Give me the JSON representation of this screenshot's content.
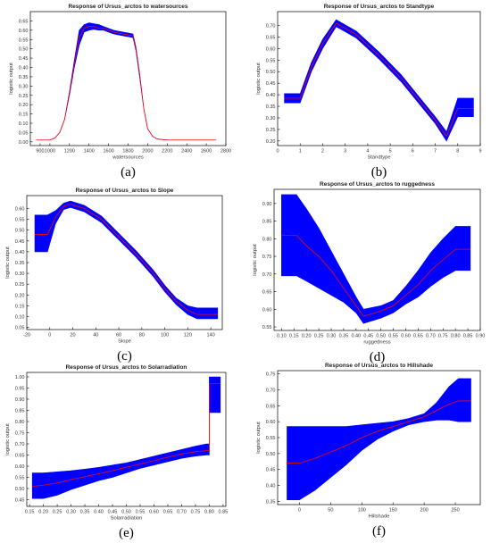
{
  "colors": {
    "band": "#0000ff",
    "mean": "#ff0000",
    "axis": "#000000"
  },
  "chart_data": [
    {
      "type": "line",
      "panel": "(a)",
      "title": "Response of Ursus_arctos to watersources",
      "xlabel": "watersources",
      "ylabel": "logistic output",
      "xlim": [
        800,
        2800
      ],
      "ylim": [
        -0.02,
        0.7
      ],
      "xticks": [
        900,
        1000,
        1200,
        1400,
        1600,
        1800,
        2000,
        2200,
        2400,
        2600,
        2800
      ],
      "xtick_labels": [
        "900",
        "1000",
        "1200",
        "1400",
        "1600",
        "1800",
        "2000",
        "2200",
        "2400",
        "2600",
        "2800"
      ],
      "yticks": [
        0,
        0.05,
        0.1,
        0.15,
        0.2,
        0.25,
        0.3,
        0.35,
        0.4,
        0.45,
        0.5,
        0.55,
        0.6,
        0.65
      ],
      "ytick_labels": [
        "0.00",
        "0.05",
        "0.10",
        "0.15",
        "0.20",
        "0.25",
        "0.30",
        "0.35",
        "0.40",
        "0.45",
        "0.50",
        "0.55",
        "0.60",
        "0.65"
      ],
      "x": [
        860,
        1000,
        1050,
        1100,
        1150,
        1200,
        1250,
        1300,
        1350,
        1400,
        1450,
        1500,
        1550,
        1600,
        1650,
        1700,
        1750,
        1800,
        1850,
        1880,
        1920,
        1960,
        2000,
        2050,
        2100,
        2200,
        2400,
        2600,
        2700
      ],
      "mean": [
        0.01,
        0.01,
        0.02,
        0.05,
        0.12,
        0.26,
        0.42,
        0.56,
        0.61,
        0.62,
        0.62,
        0.61,
        0.61,
        0.6,
        0.59,
        0.585,
        0.58,
        0.575,
        0.57,
        0.5,
        0.35,
        0.18,
        0.07,
        0.03,
        0.015,
        0.01,
        0.01,
        0.01,
        0.01
      ],
      "upper": [
        0.01,
        0.01,
        0.02,
        0.05,
        0.12,
        0.27,
        0.44,
        0.6,
        0.63,
        0.64,
        0.635,
        0.63,
        0.62,
        0.61,
        0.6,
        0.595,
        0.59,
        0.585,
        0.58,
        0.51,
        0.36,
        0.18,
        0.07,
        0.03,
        0.015,
        0.01,
        0.01,
        0.01,
        0.01
      ],
      "lower": [
        0.01,
        0.01,
        0.02,
        0.05,
        0.12,
        0.25,
        0.4,
        0.52,
        0.59,
        0.6,
        0.605,
        0.6,
        0.6,
        0.59,
        0.58,
        0.575,
        0.57,
        0.565,
        0.56,
        0.49,
        0.34,
        0.18,
        0.07,
        0.03,
        0.015,
        0.01,
        0.01,
        0.01,
        0.01
      ]
    },
    {
      "type": "line",
      "panel": "(b)",
      "title": "Response of Ursus_arctos to Standtype",
      "xlabel": "Standtype",
      "ylabel": "logistic output",
      "xlim": [
        0,
        9
      ],
      "ylim": [
        0.18,
        0.76
      ],
      "xticks": [
        0,
        1,
        2,
        3,
        4,
        5,
        6,
        7,
        8,
        9
      ],
      "xtick_labels": [
        "0",
        "1",
        "2",
        "3",
        "4",
        "5",
        "6",
        "7",
        "8",
        "9"
      ],
      "yticks": [
        0.2,
        0.25,
        0.3,
        0.35,
        0.4,
        0.45,
        0.5,
        0.55,
        0.6,
        0.65,
        0.7
      ],
      "ytick_labels": [
        "0.20",
        "0.25",
        "0.30",
        "0.35",
        "0.40",
        "0.45",
        "0.50",
        "0.55",
        "0.60",
        "0.65",
        "0.70"
      ],
      "x": [
        0.3,
        1.0,
        1.5,
        2.0,
        2.6,
        3.5,
        4.5,
        5.5,
        6.5,
        7.0,
        7.5,
        8.0,
        8.7
      ],
      "mean": [
        0.385,
        0.385,
        0.52,
        0.62,
        0.71,
        0.66,
        0.57,
        0.47,
        0.35,
        0.29,
        0.22,
        0.34,
        0.34
      ],
      "upper": [
        0.405,
        0.405,
        0.54,
        0.64,
        0.725,
        0.675,
        0.585,
        0.485,
        0.365,
        0.305,
        0.24,
        0.385,
        0.385
      ],
      "lower": [
        0.365,
        0.365,
        0.5,
        0.6,
        0.695,
        0.645,
        0.555,
        0.455,
        0.335,
        0.275,
        0.2,
        0.305,
        0.305
      ]
    },
    {
      "type": "line",
      "panel": "(c)",
      "title": "Response of Ursus_arctos to Slope",
      "xlabel": "Slope",
      "ylabel": "logistic output",
      "xlim": [
        -20,
        150
      ],
      "ylim": [
        0.04,
        0.66
      ],
      "xticks": [
        -20,
        0,
        20,
        40,
        60,
        80,
        100,
        120,
        140
      ],
      "xtick_labels": [
        "-20",
        "0",
        "20",
        "40",
        "60",
        "80",
        "100",
        "120",
        "140"
      ],
      "yticks": [
        0.05,
        0.1,
        0.15,
        0.2,
        0.25,
        0.3,
        0.35,
        0.4,
        0.45,
        0.5,
        0.55,
        0.6
      ],
      "ytick_labels": [
        "0.05",
        "0.10",
        "0.15",
        "0.20",
        "0.25",
        "0.30",
        "0.35",
        "0.40",
        "0.45",
        "0.50",
        "0.55",
        "0.60"
      ],
      "x": [
        -13,
        -2,
        5,
        12,
        18,
        30,
        45,
        60,
        75,
        90,
        100,
        110,
        120,
        128,
        146
      ],
      "mean": [
        0.48,
        0.48,
        0.56,
        0.61,
        0.62,
        0.6,
        0.55,
        0.47,
        0.39,
        0.3,
        0.23,
        0.17,
        0.13,
        0.11,
        0.11
      ],
      "upper": [
        0.57,
        0.57,
        0.59,
        0.625,
        0.635,
        0.615,
        0.565,
        0.485,
        0.405,
        0.315,
        0.245,
        0.185,
        0.15,
        0.14,
        0.14
      ],
      "lower": [
        0.4,
        0.4,
        0.53,
        0.595,
        0.605,
        0.585,
        0.535,
        0.455,
        0.375,
        0.285,
        0.215,
        0.155,
        0.11,
        0.09,
        0.09
      ]
    },
    {
      "type": "line",
      "panel": "(d)",
      "title": "Response of Ursus_arctos to ruggedness",
      "xlabel": "ruggedness",
      "ylabel": "logistic output",
      "xlim": [
        0.07,
        0.9
      ],
      "ylim": [
        0.54,
        0.94
      ],
      "xticks": [
        0.1,
        0.15,
        0.2,
        0.25,
        0.3,
        0.35,
        0.4,
        0.45,
        0.5,
        0.55,
        0.6,
        0.65,
        0.7,
        0.75,
        0.8,
        0.85,
        0.9
      ],
      "xtick_labels": [
        "0.10",
        "0.15",
        "0.20",
        "0.25",
        "0.30",
        "0.35",
        "0.40",
        "0.45",
        "0.50",
        "0.55",
        "0.60",
        "0.65",
        "0.70",
        "0.75",
        "0.80",
        "0.85",
        "0.90"
      ],
      "yticks": [
        0.55,
        0.6,
        0.65,
        0.7,
        0.75,
        0.8,
        0.85,
        0.9
      ],
      "ytick_labels": [
        "0.55",
        "0.60",
        "0.65",
        "0.70",
        "0.75",
        "0.80",
        "0.85",
        "0.90"
      ],
      "x": [
        0.1,
        0.16,
        0.2,
        0.25,
        0.3,
        0.35,
        0.4,
        0.43,
        0.5,
        0.55,
        0.6,
        0.65,
        0.7,
        0.75,
        0.8,
        0.86
      ],
      "mean": [
        0.81,
        0.81,
        0.78,
        0.75,
        0.71,
        0.66,
        0.61,
        0.58,
        0.595,
        0.61,
        0.64,
        0.67,
        0.71,
        0.74,
        0.77,
        0.77
      ],
      "upper": [
        0.925,
        0.925,
        0.885,
        0.83,
        0.765,
        0.7,
        0.635,
        0.6,
        0.61,
        0.625,
        0.665,
        0.71,
        0.76,
        0.8,
        0.835,
        0.835
      ],
      "lower": [
        0.695,
        0.695,
        0.68,
        0.66,
        0.64,
        0.62,
        0.59,
        0.56,
        0.575,
        0.59,
        0.615,
        0.635,
        0.665,
        0.69,
        0.71,
        0.71
      ]
    },
    {
      "type": "line",
      "panel": "(e)",
      "title": "Response of Ursus_arctos to Solarradiation",
      "xlabel": "Solarradiation",
      "ylabel": "logistic output",
      "xlim": [
        0.14,
        0.86
      ],
      "ylim": [
        0.42,
        1.02
      ],
      "xticks": [
        0.15,
        0.2,
        0.25,
        0.3,
        0.35,
        0.4,
        0.45,
        0.5,
        0.55,
        0.6,
        0.65,
        0.7,
        0.75,
        0.8,
        0.85
      ],
      "xtick_labels": [
        "0.15",
        "0.20",
        "0.25",
        "0.30",
        "0.35",
        "0.40",
        "0.45",
        "0.50",
        "0.55",
        "0.60",
        "0.65",
        "0.70",
        "0.75",
        "0.80",
        "0.85"
      ],
      "yticks": [
        0.45,
        0.5,
        0.55,
        0.6,
        0.65,
        0.7,
        0.75,
        0.8,
        0.85,
        0.9,
        0.95,
        1.0
      ],
      "ytick_labels": [
        "0.45",
        "0.50",
        "0.55",
        "0.60",
        "0.65",
        "0.70",
        "0.75",
        "0.80",
        "0.85",
        "0.90",
        "0.95",
        "1.00"
      ],
      "x": [
        0.16,
        0.2,
        0.25,
        0.3,
        0.35,
        0.4,
        0.45,
        0.5,
        0.55,
        0.6,
        0.65,
        0.7,
        0.75,
        0.79,
        0.8,
        0.8,
        0.84
      ],
      "mean": [
        0.51,
        0.515,
        0.525,
        0.54,
        0.553,
        0.566,
        0.58,
        0.595,
        0.61,
        0.625,
        0.64,
        0.655,
        0.665,
        0.67,
        0.67,
        0.97,
        0.97
      ],
      "upper": [
        0.57,
        0.57,
        0.575,
        0.58,
        0.587,
        0.595,
        0.605,
        0.615,
        0.63,
        0.645,
        0.66,
        0.675,
        0.69,
        0.7,
        0.7,
        1.0,
        1.0
      ],
      "lower": [
        0.455,
        0.455,
        0.47,
        0.495,
        0.515,
        0.535,
        0.55,
        0.57,
        0.59,
        0.605,
        0.62,
        0.635,
        0.645,
        0.65,
        0.65,
        0.84,
        0.84
      ]
    },
    {
      "type": "line",
      "panel": "(f)",
      "title": "Response of Ursus_arctos to Hillshade",
      "xlabel": "Hillshade",
      "ylabel": "logistic output",
      "xlim": [
        -35,
        290
      ],
      "ylim": [
        0.34,
        0.76
      ],
      "xticks": [
        0,
        50,
        100,
        150,
        200,
        250
      ],
      "xtick_labels": [
        "0",
        "50",
        "100",
        "150",
        "200",
        "250"
      ],
      "yticks": [
        0.35,
        0.4,
        0.45,
        0.5,
        0.55,
        0.6,
        0.65,
        0.7,
        0.75
      ],
      "ytick_labels": [
        "0.35",
        "0.40",
        "0.45",
        "0.50",
        "0.55",
        "0.60",
        "0.65",
        "0.70",
        "0.75"
      ],
      "x": [
        -20,
        0,
        25,
        50,
        75,
        100,
        125,
        150,
        175,
        200,
        220,
        240,
        255,
        275
      ],
      "mean": [
        0.47,
        0.47,
        0.485,
        0.505,
        0.525,
        0.55,
        0.57,
        0.585,
        0.6,
        0.615,
        0.635,
        0.655,
        0.665,
        0.665
      ],
      "upper": [
        0.585,
        0.585,
        0.585,
        0.585,
        0.585,
        0.59,
        0.595,
        0.6,
        0.61,
        0.625,
        0.66,
        0.71,
        0.735,
        0.735
      ],
      "lower": [
        0.355,
        0.355,
        0.385,
        0.425,
        0.465,
        0.51,
        0.545,
        0.57,
        0.59,
        0.6,
        0.605,
        0.605,
        0.6,
        0.6
      ]
    }
  ]
}
